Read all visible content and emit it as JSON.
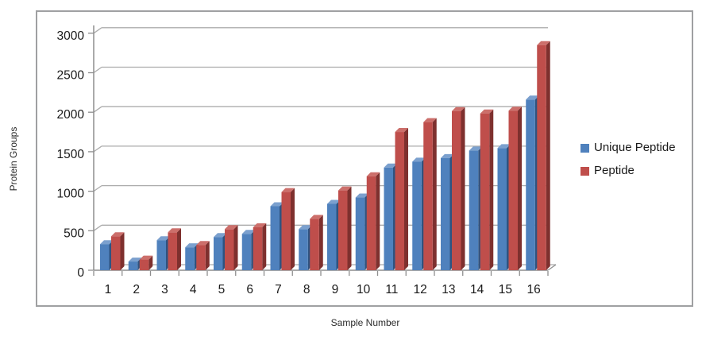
{
  "figure": {
    "frame_border_color": "#9fa0a2",
    "background_color": "#ffffff"
  },
  "chart_data": {
    "type": "bar",
    "style": "3d-clustered-column",
    "xlabel": "Sample Number",
    "ylabel": "Protein Groups",
    "categories": [
      "1",
      "2",
      "3",
      "4",
      "5",
      "6",
      "7",
      "8",
      "9",
      "10",
      "11",
      "12",
      "13",
      "14",
      "15",
      "16"
    ],
    "series": [
      {
        "name": "Unique Peptide",
        "color": "#4f81bd",
        "color_top": "#7ba0ce",
        "color_side": "#2f5380",
        "values": [
          330,
          110,
          380,
          290,
          420,
          460,
          810,
          520,
          840,
          920,
          1300,
          1375,
          1420,
          1515,
          1545,
          2160
        ]
      },
      {
        "name": "Peptide",
        "color": "#bf4e4b",
        "color_top": "#cc6f6b",
        "color_side": "#7e302e",
        "values": [
          430,
          135,
          480,
          320,
          520,
          545,
          990,
          650,
          1010,
          1190,
          1750,
          1875,
          2015,
          1985,
          2020,
          2850
        ]
      }
    ],
    "y_ticks": [
      0,
      500,
      1000,
      1500,
      2000,
      2500,
      3000
    ],
    "ylim": [
      0,
      3000
    ],
    "grid": true,
    "legend_position": "right",
    "gridline_color": "#ababab",
    "axis_color": "#8e8e8e",
    "tick_label_color": "#1a1a1a"
  }
}
